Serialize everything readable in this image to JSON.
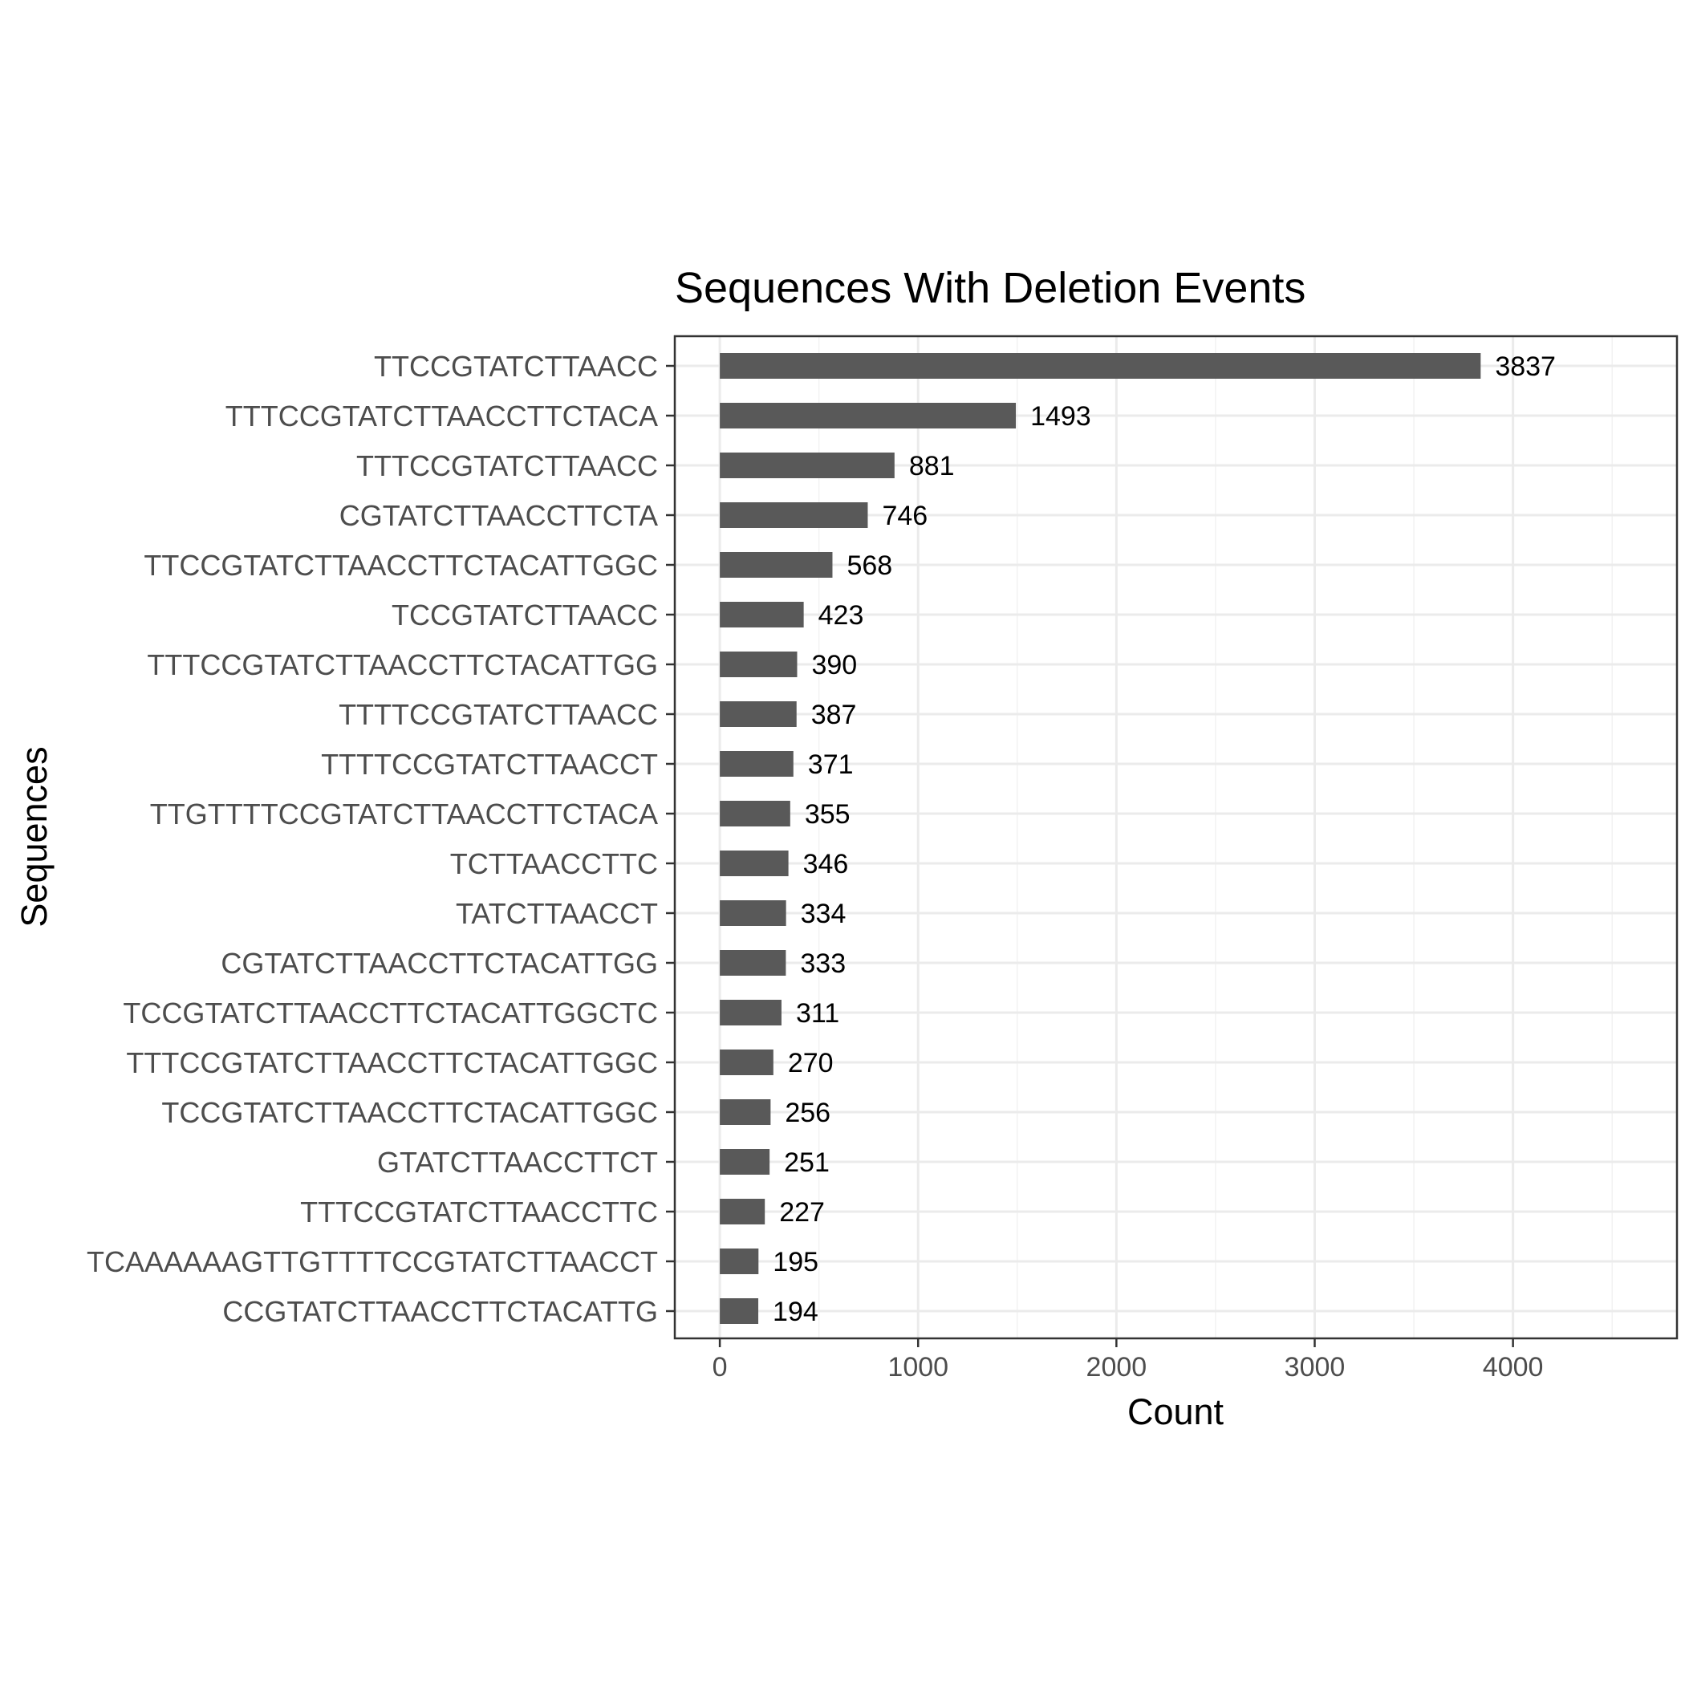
{
  "chart_data": {
    "type": "bar",
    "orientation": "horizontal",
    "title": "Sequences With Deletion Events",
    "xlabel": "Count",
    "ylabel": "Sequences",
    "xlim": [
      -227,
      4827
    ],
    "xticks": [
      0,
      1000,
      2000,
      3000,
      4000
    ],
    "grid": true,
    "legend": "none",
    "bar_color": "#595959",
    "categories": [
      "TTCCGTATCTTAACC",
      "TTTCCGTATCTTAACCTTCTACA",
      "TTTCCGTATCTTAACC",
      "CGTATCTTAACCTTCTA",
      "TTCCGTATCTTAACCTTCTACATTGGC",
      "TCCGTATCTTAACC",
      "TTTCCGTATCTTAACCTTCTACATTGG",
      "TTTTCCGTATCTTAACC",
      "TTTTCCGTATCTTAACCT",
      "TTGTTTTCCGTATCTTAACCTTCTACA",
      "TCTTAACCTTC",
      "TATCTTAACCT",
      "CGTATCTTAACCTTCTACATTGG",
      "TCCGTATCTTAACCTTCTACATTGGCTC",
      "TTTCCGTATCTTAACCTTCTACATTGGC",
      "TCCGTATCTTAACCTTCTACATTGGC",
      "GTATCTTAACCTTCT",
      "TTTCCGTATCTTAACCTTC",
      "TCAAAAAAGTTGTTTTCCGTATCTTAACCT",
      "CCGTATCTTAACCTTCTACATTG"
    ],
    "values": [
      3837,
      1493,
      881,
      746,
      568,
      423,
      390,
      387,
      371,
      355,
      346,
      334,
      333,
      311,
      270,
      256,
      251,
      227,
      195,
      194
    ]
  }
}
